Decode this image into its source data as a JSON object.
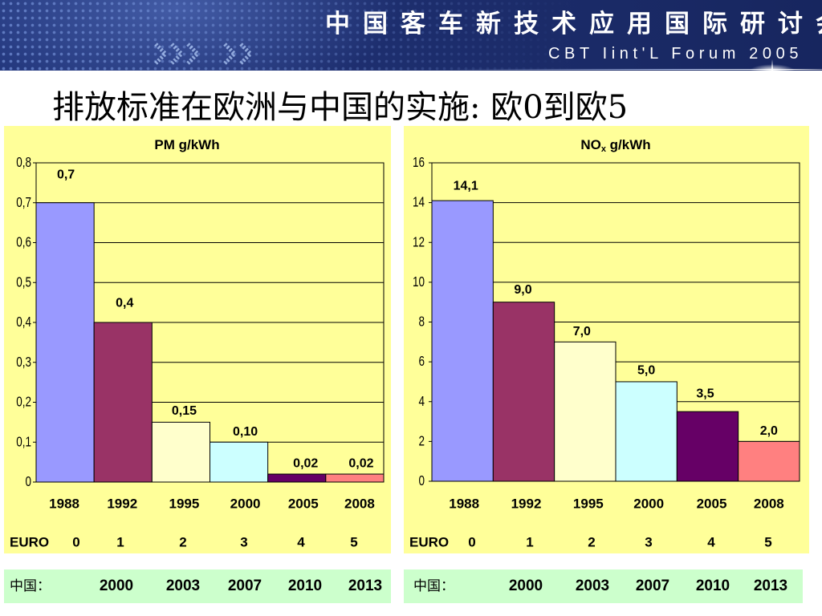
{
  "header": {
    "title": "中国客车新技术应用国际研讨会",
    "subtitle": "CBT Iint'L Forum 2005"
  },
  "slide_title": "排放标准在欧洲与中国的实施: 欧0到欧5",
  "colors": {
    "header_bg": "#1e2f70",
    "panel_bg": "#FFFF99",
    "china_row_bg": "#CCFFCC"
  },
  "chart_data": [
    {
      "type": "bar",
      "title": {
        "main": "PM g/kWh"
      },
      "categories": [
        "1988",
        "1992",
        "1995",
        "2000",
        "2005",
        "2008"
      ],
      "values": [
        0.7,
        0.4,
        0.15,
        0.1,
        0.02,
        0.02
      ],
      "data_labels": [
        "0,7",
        "0,4",
        "0,15",
        "0,10",
        "0,02",
        "0,02"
      ],
      "ylim": [
        0,
        0.8
      ],
      "ytick_labels": [
        "0",
        "0,1",
        "0,2",
        "0,3",
        "0,4",
        "0,5",
        "0,6",
        "0,7",
        "0,8"
      ],
      "grid": true,
      "bar_colors": [
        "#9999FF",
        "#993366",
        "#FFFFCC",
        "#CCFFFF",
        "#660066",
        "#FF8080"
      ],
      "euro": {
        "label": "EURO",
        "levels": [
          "0",
          "1",
          "2",
          "3",
          "4",
          "5"
        ]
      },
      "china": {
        "label": "中国：",
        "years": [
          "2000",
          "2003",
          "2007",
          "2010",
          "2013"
        ]
      }
    },
    {
      "type": "bar",
      "title": {
        "main": "NO",
        "sub": "x",
        "rest": " g/kWh"
      },
      "categories": [
        "1988",
        "1992",
        "1995",
        "2000",
        "2005",
        "2008"
      ],
      "values": [
        14.1,
        9.0,
        7.0,
        5.0,
        3.5,
        2.0
      ],
      "data_labels": [
        "14,1",
        "9,0",
        "7,0",
        "5,0",
        "3,5",
        "2,0"
      ],
      "ylim": [
        0,
        16
      ],
      "ytick_labels": [
        "0",
        "2",
        "4",
        "6",
        "8",
        "10",
        "12",
        "14",
        "16"
      ],
      "grid": true,
      "bar_colors": [
        "#9999FF",
        "#993366",
        "#FFFFCC",
        "#CCFFFF",
        "#660066",
        "#FF8080"
      ],
      "euro": {
        "label": "EURO",
        "levels": [
          "0",
          "1",
          "2",
          "3",
          "4",
          "5"
        ]
      },
      "china": {
        "label": "中国：",
        "years": [
          "2000",
          "2003",
          "2007",
          "2010",
          "2013"
        ]
      }
    }
  ]
}
